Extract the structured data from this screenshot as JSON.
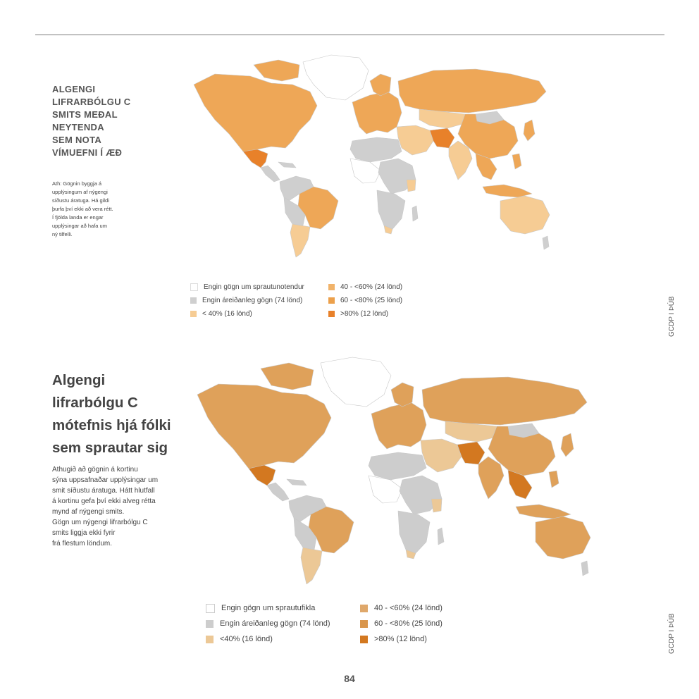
{
  "section1": {
    "title_lines": [
      "ALGENGI",
      "LIFRARBÓLGU C",
      "SMITS MEÐAL",
      "NEYTENDA",
      "SEM NOTA",
      "VÍMUEFNI Í ÆÐ"
    ],
    "note_lines": [
      "Ath: Gögnin byggja á",
      "upplýsingum af nýgengi",
      "síðustu áratuga. Há gildi",
      "þurfa því ekki að vera rétt.",
      "Í fjölda landa er engar",
      "upplýsingar að hafa um",
      "ný tilfelli."
    ],
    "legend": [
      {
        "label": "Engin gögn um sprautunotendur",
        "color": "#ffffff",
        "border": "#dddddd"
      },
      {
        "label": "Engin áreiðanleg gögn (74 lönd)",
        "color": "#cfcfcf",
        "border": "#cfcfcf"
      },
      {
        "label": "< 40% (16 lönd)",
        "color": "#f6cc94",
        "border": "#f6cc94"
      },
      {
        "label": "40 - <60% (24 lönd)",
        "color": "#f1b36a",
        "border": "#f1b36a"
      },
      {
        "label": "60 - <80% (25 lönd)",
        "color": "#eca04b",
        "border": "#eca04b"
      },
      {
        "label": ">80% (12 lönd)",
        "color": "#e8812a",
        "border": "#e8812a"
      }
    ],
    "side_label": "GCDP I ÞÚB"
  },
  "section2": {
    "title_lines": [
      "Algengi",
      "lifrarbólgu C",
      "mótefnis hjá fólki",
      "sem sprautar sig"
    ],
    "note_lines": [
      "Athugið að gögnin á kortinu",
      "sýna uppsafnaðar upplýsingar um",
      "smit síðustu áratuga. Hátt hlutfall",
      "á kortinu gefa því ekki alveg rétta",
      "mynd af nýgengi smits.",
      "Gögn um nýgengi lifrarbólgu C",
      "smits liggja ekki fyrir",
      "frá flestum löndum."
    ],
    "legend": [
      {
        "label": "Engin gögn um sprautufikla",
        "color": "#ffffff",
        "border": "#cccccc"
      },
      {
        "label": "Engin áreiðanleg gögn (74 lönd)",
        "color": "#cdcdcd",
        "border": "#cdcdcd"
      },
      {
        "label": "<40% (16 lönd)",
        "color": "#ecc896",
        "border": "#ecc896"
      },
      {
        "label": "40 - <60% (24 lönd)",
        "color": "#dfa86b",
        "border": "#dfa86b"
      },
      {
        "label": "60 - <80% (25 lönd)",
        "color": "#d9964d",
        "border": "#d9964d"
      },
      {
        "label": ">80% (12 lönd)",
        "color": "#d37820",
        "border": "#d37820"
      }
    ],
    "side_label": "GCDP I ÞÚB"
  },
  "page_number": "84",
  "colors": {
    "map1_base": "#eea757",
    "map1_gray": "#cfcfcf",
    "map1_light": "#f6cc94",
    "map1_dark": "#e8812a",
    "map2_base": "#dfa15a",
    "map2_gray": "#cdcdcd",
    "map2_light": "#ecc896",
    "map2_dark": "#d37820",
    "outline": "#c8c8c8"
  }
}
